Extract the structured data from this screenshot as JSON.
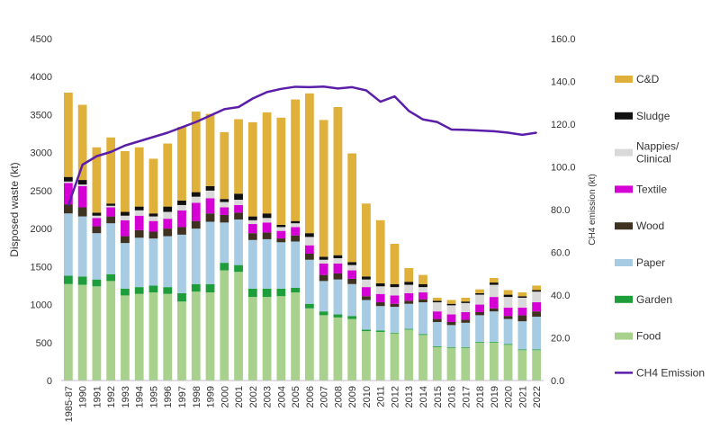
{
  "chart_data": {
    "type": "bar",
    "subtype": "stacked-bar-with-line",
    "title": "",
    "xlabel": "",
    "ylabel": "Disposed waste (kt)",
    "y2label": "CH4 emission (kt)",
    "ylim": [
      0,
      4500
    ],
    "y2lim": [
      0,
      160
    ],
    "yticks": [
      "0",
      "500",
      "1000",
      "1500",
      "2000",
      "2500",
      "3000",
      "3500",
      "4000",
      "4500"
    ],
    "y2ticks": [
      "0.0",
      "20.0",
      "40.0",
      "60.0",
      "80.0",
      "100.0",
      "120.0",
      "140.0",
      "160.0"
    ],
    "grid": false,
    "legend_position": "right",
    "categories": [
      "1985-87",
      "1990",
      "1991",
      "1992",
      "1993",
      "1994",
      "1995",
      "1996",
      "1997",
      "1998",
      "1999",
      "2000",
      "2001",
      "2002",
      "2003",
      "2004",
      "2005",
      "2006",
      "2007",
      "2008",
      "2009",
      "2010",
      "2011",
      "2012",
      "2013",
      "2014",
      "2015",
      "2016",
      "2017",
      "2018",
      "2019",
      "2020",
      "2021",
      "2022"
    ],
    "series": [
      {
        "name": "Food",
        "color": "#a9d18e",
        "values": [
          1270,
          1260,
          1240,
          1310,
          1120,
          1140,
          1160,
          1140,
          1040,
          1170,
          1160,
          1450,
          1430,
          1100,
          1100,
          1110,
          1160,
          950,
          860,
          830,
          810,
          650,
          640,
          620,
          670,
          600,
          440,
          430,
          430,
          500,
          500,
          470,
          400,
          400
        ]
      },
      {
        "name": "Garden",
        "color": "#1e9e3a",
        "values": [
          110,
          110,
          90,
          90,
          90,
          90,
          90,
          90,
          110,
          100,
          110,
          100,
          90,
          110,
          110,
          100,
          60,
          60,
          50,
          40,
          40,
          20,
          20,
          10,
          10,
          10,
          10,
          10,
          10,
          10,
          10,
          10,
          10,
          10
        ]
      },
      {
        "name": "Paper",
        "color": "#a6cbe3",
        "values": [
          820,
          790,
          610,
          670,
          600,
          650,
          620,
          670,
          770,
          730,
          820,
          530,
          600,
          640,
          650,
          610,
          610,
          580,
          400,
          460,
          420,
          390,
          320,
          340,
          330,
          420,
          320,
          290,
          320,
          350,
          400,
          330,
          370,
          430
        ]
      },
      {
        "name": "Wood",
        "color": "#3f3220",
        "values": [
          120,
          120,
          90,
          90,
          90,
          100,
          90,
          100,
          100,
          100,
          110,
          100,
          90,
          90,
          90,
          50,
          80,
          80,
          80,
          80,
          70,
          50,
          50,
          40,
          40,
          40,
          40,
          40,
          40,
          40,
          40,
          40,
          80,
          70
        ]
      },
      {
        "name": "Textile",
        "color": "#d400d4",
        "values": [
          280,
          280,
          110,
          120,
          210,
          190,
          140,
          130,
          220,
          240,
          200,
          100,
          100,
          120,
          130,
          100,
          110,
          110,
          150,
          130,
          110,
          120,
          110,
          110,
          100,
          90,
          100,
          100,
          100,
          100,
          150,
          110,
          100,
          120
        ]
      },
      {
        "name": "Nappies/ Clinical",
        "color": "#d9d9d9",
        "values": [
          20,
          20,
          30,
          20,
          60,
          70,
          60,
          90,
          70,
          80,
          100,
          70,
          70,
          50,
          60,
          50,
          50,
          110,
          50,
          70,
          70,
          100,
          100,
          110,
          110,
          70,
          120,
          120,
          120,
          130,
          160,
          140,
          130,
          140
        ]
      },
      {
        "name": "Sludge",
        "color": "#111111",
        "values": [
          60,
          60,
          40,
          30,
          50,
          50,
          40,
          70,
          60,
          60,
          60,
          40,
          80,
          50,
          60,
          30,
          30,
          50,
          40,
          40,
          40,
          40,
          40,
          40,
          40,
          40,
          20,
          20,
          20,
          20,
          30,
          30,
          20,
          20
        ]
      },
      {
        "name": "C&D",
        "color": "#dfb13a",
        "values": [
          1110,
          990,
          860,
          870,
          800,
          780,
          720,
          830,
          970,
          1060,
          950,
          880,
          980,
          1240,
          1330,
          1410,
          1600,
          1840,
          1800,
          1950,
          1430,
          960,
          830,
          530,
          180,
          120,
          40,
          50,
          50,
          50,
          60,
          60,
          50,
          60
        ]
      }
    ],
    "line_series": {
      "name": "CH4 Emission",
      "color": "#5b1ea8",
      "axis": "right",
      "values": [
        82,
        101,
        105,
        107,
        110,
        112,
        114,
        116,
        118.5,
        121,
        124,
        127,
        128,
        132,
        135,
        136.5,
        137.5,
        137.3,
        137.6,
        136.7,
        137.3,
        135.8,
        130.5,
        133,
        126.2,
        122.2,
        121,
        117.5,
        117.3,
        117,
        116.7,
        116,
        115,
        116
      ]
    }
  }
}
